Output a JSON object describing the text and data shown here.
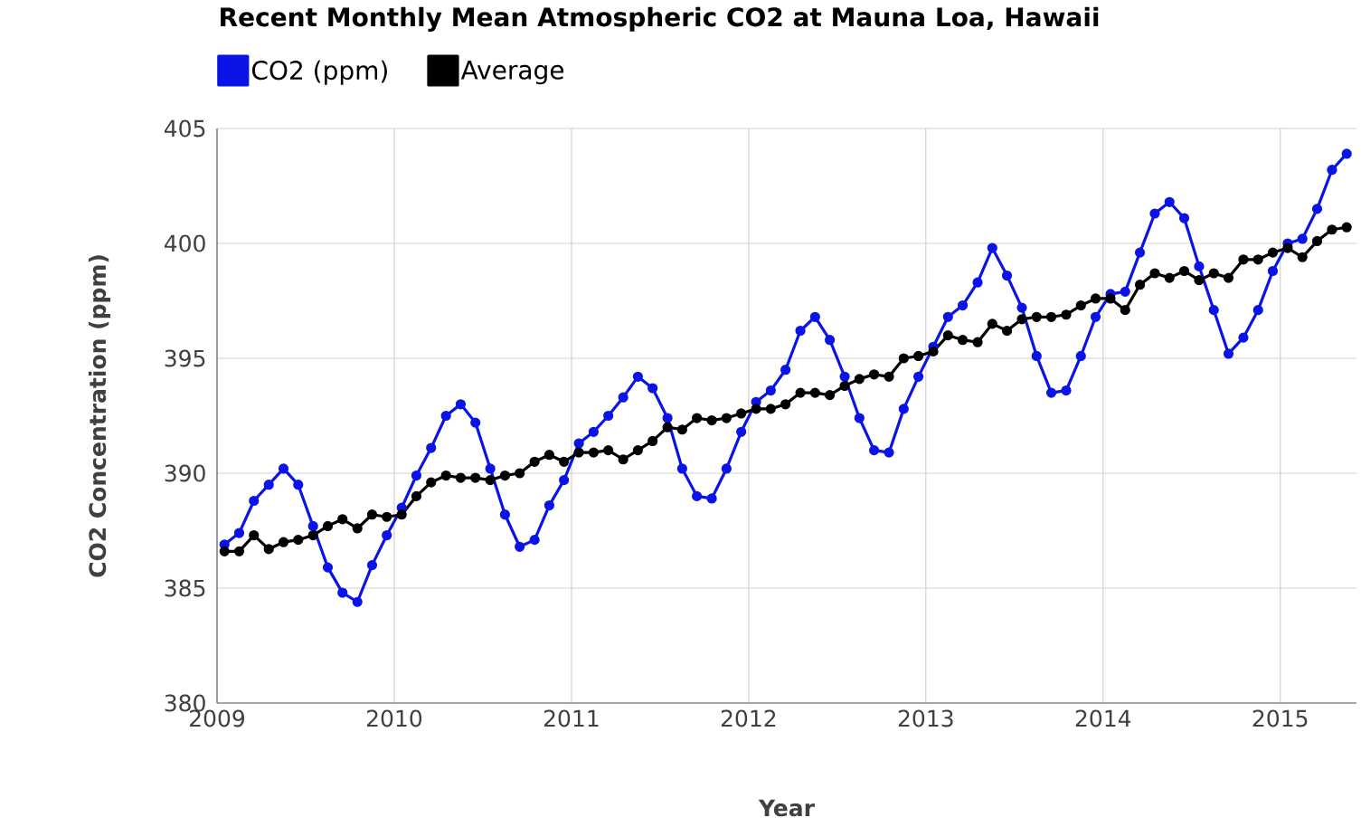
{
  "chart_data": {
    "type": "line",
    "title": "Recent Monthly Mean Atmospheric CO2 at Mauna Loa, Hawaii",
    "xlabel": "Year",
    "ylabel": "CO2 Concentration (ppm)",
    "x": [
      2009.042,
      2009.125,
      2009.208,
      2009.292,
      2009.375,
      2009.458,
      2009.542,
      2009.625,
      2009.708,
      2009.792,
      2009.875,
      2009.958,
      2010.042,
      2010.125,
      2010.208,
      2010.292,
      2010.375,
      2010.458,
      2010.542,
      2010.625,
      2010.708,
      2010.792,
      2010.875,
      2010.958,
      2011.042,
      2011.125,
      2011.208,
      2011.292,
      2011.375,
      2011.458,
      2011.542,
      2011.625,
      2011.708,
      2011.792,
      2011.875,
      2011.958,
      2012.042,
      2012.125,
      2012.208,
      2012.292,
      2012.375,
      2012.458,
      2012.542,
      2012.625,
      2012.708,
      2012.792,
      2012.875,
      2012.958,
      2013.042,
      2013.125,
      2013.208,
      2013.292,
      2013.375,
      2013.458,
      2013.542,
      2013.625,
      2013.708,
      2013.792,
      2013.875,
      2013.958,
      2014.042,
      2014.125,
      2014.208,
      2014.292,
      2014.375,
      2014.458,
      2014.542,
      2014.625,
      2014.708,
      2014.792,
      2014.875,
      2014.958,
      2015.042,
      2015.125,
      2015.208,
      2015.292,
      2015.375
    ],
    "series": [
      {
        "name": "CO2 (ppm)",
        "color": "#0a14e6",
        "values": [
          386.9,
          387.4,
          388.8,
          389.5,
          390.2,
          389.5,
          387.7,
          385.9,
          384.8,
          384.4,
          386.0,
          387.3,
          388.5,
          389.9,
          391.1,
          392.5,
          393.0,
          392.2,
          390.2,
          388.2,
          386.8,
          387.1,
          388.6,
          389.7,
          391.3,
          391.8,
          392.5,
          393.3,
          394.2,
          393.7,
          392.4,
          390.2,
          389.0,
          388.9,
          390.2,
          391.8,
          393.1,
          393.6,
          394.5,
          396.2,
          396.8,
          395.8,
          394.2,
          392.4,
          391.0,
          390.9,
          392.8,
          394.2,
          395.5,
          396.8,
          397.3,
          398.3,
          399.8,
          398.6,
          397.2,
          395.1,
          393.5,
          393.6,
          395.1,
          396.8,
          397.8,
          397.9,
          399.6,
          401.3,
          401.8,
          401.1,
          399.0,
          397.1,
          395.2,
          395.9,
          397.1,
          398.8,
          400.0,
          400.2,
          401.5,
          403.2,
          403.9
        ]
      },
      {
        "name": "Average",
        "color": "#000000",
        "values": [
          386.6,
          386.6,
          387.3,
          386.7,
          387.0,
          387.1,
          387.3,
          387.7,
          388.0,
          387.6,
          388.2,
          388.1,
          388.2,
          389.0,
          389.6,
          389.9,
          389.8,
          389.8,
          389.7,
          389.9,
          390.0,
          390.5,
          390.8,
          390.5,
          390.9,
          390.9,
          391.0,
          390.6,
          391.0,
          391.4,
          392.0,
          391.9,
          392.4,
          392.3,
          392.4,
          392.6,
          392.8,
          392.8,
          393.0,
          393.5,
          393.5,
          393.4,
          393.8,
          394.1,
          394.3,
          394.2,
          395.0,
          395.1,
          395.3,
          396.0,
          395.8,
          395.7,
          396.5,
          396.2,
          396.7,
          396.8,
          396.8,
          396.9,
          397.3,
          397.6,
          397.6,
          397.1,
          398.2,
          398.7,
          398.5,
          398.8,
          398.4,
          398.7,
          398.5,
          399.3,
          399.3,
          399.6,
          399.8,
          399.4,
          400.1,
          400.6,
          400.7
        ]
      }
    ],
    "xlim": [
      2009,
      2015.43
    ],
    "xticks": [
      2009,
      2010,
      2011,
      2012,
      2013,
      2014,
      2015
    ],
    "ylim": [
      380,
      405
    ],
    "yticks": [
      380,
      385,
      390,
      395,
      400,
      405
    ],
    "grid": true,
    "legend": "top left",
    "marker": "circle",
    "line_style": "solid"
  }
}
